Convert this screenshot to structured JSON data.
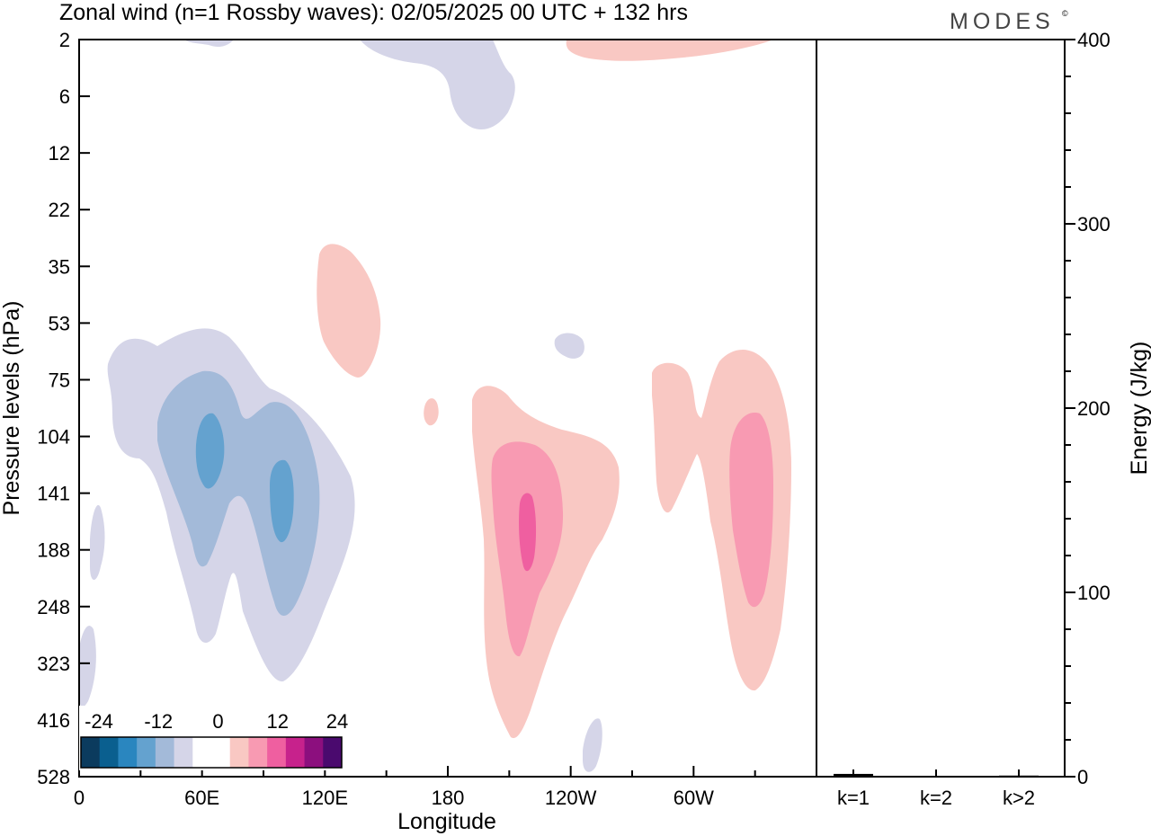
{
  "brand": "MODES",
  "brand_mark": "©",
  "chart_data": [
    {
      "type": "heatmap",
      "title": "Zonal wind (n=1 Rossby waves):  02/05/2025  00 UTC  + 132 hrs",
      "xlabel": "Longitude",
      "ylabel": "Pressure levels (hPa)",
      "x_ticks": [
        {
          "label": "0",
          "lon": 0
        },
        {
          "label": "60E",
          "lon": 60
        },
        {
          "label": "120E",
          "lon": 120
        },
        {
          "label": "180",
          "lon": 180
        },
        {
          "label": "120W",
          "lon": 240
        },
        {
          "label": "60W",
          "lon": 300
        }
      ],
      "xlim": [
        0,
        360
      ],
      "y_levels": [
        "2",
        "6",
        "12",
        "22",
        "35",
        "53",
        "75",
        "104",
        "141",
        "188",
        "248",
        "323",
        "416",
        "528"
      ],
      "colorbar": {
        "labels": [
          "-24",
          "-12",
          "0",
          "12",
          "24"
        ],
        "colors": [
          "#0b3b5e",
          "#0a5f8f",
          "#2a86bf",
          "#64a2cf",
          "#a3bad9",
          "#d5d5e8",
          "#ffffff",
          "#ffffff",
          "#f9c8c3",
          "#f89ab2",
          "#ef5fa0",
          "#c7228c",
          "#8c0f7e",
          "#4a0a6e"
        ]
      },
      "fill_levels": {
        "neg1": "#d5d5e8",
        "neg2": "#a3bad9",
        "neg3": "#64a2cf",
        "pos1": "#f9c8c3",
        "pos2": "#f89ab2",
        "pos3": "#ef5fa0"
      }
    },
    {
      "type": "bar",
      "ylabel": "Energy (J/kg)",
      "categories": [
        "k=1",
        "k=2",
        "k>2"
      ],
      "values": [
        1.5,
        0.3,
        0.6
      ],
      "ylim": [
        0,
        400
      ],
      "y_ticks": [
        "0",
        "100",
        "200",
        "300",
        "400"
      ]
    }
  ]
}
